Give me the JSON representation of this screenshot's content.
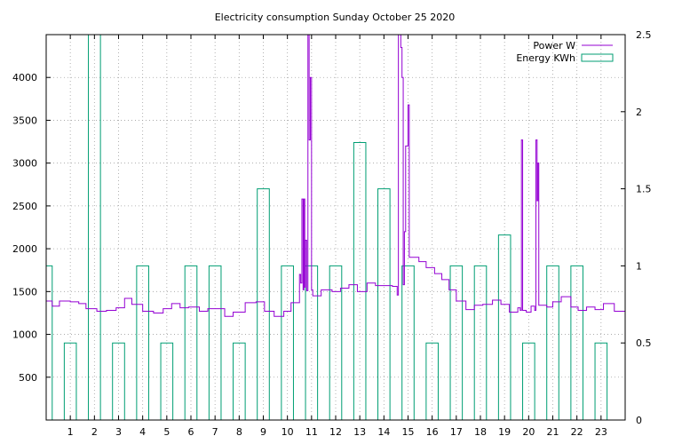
{
  "chart_data": {
    "type": "line",
    "title": "Electricity consumption Sunday October 25 2020",
    "xlabel": "",
    "ylabel": "",
    "x_range": [
      0,
      24
    ],
    "xticks": [
      "1",
      "2",
      "3",
      "4",
      "5",
      "6",
      "7",
      "8",
      "9",
      "10",
      "11",
      "12",
      "13",
      "14",
      "15",
      "16",
      "17",
      "18",
      "19",
      "20",
      "21",
      "22",
      "23"
    ],
    "y_left_range": [
      0,
      4500
    ],
    "y_left_ticks": [
      "500",
      "1000",
      "1500",
      "2000",
      "2500",
      "3000",
      "3500",
      "4000"
    ],
    "y_right_range": [
      0,
      2.5
    ],
    "y_right_ticks": [
      "0",
      "0.5",
      "1",
      "1.5",
      "2",
      "2.5"
    ],
    "grid": true,
    "legend_position": "top-right",
    "colors": {
      "power": "#9400d3",
      "energy": "#009e73"
    },
    "series": [
      {
        "name": "Power W",
        "axis": "left",
        "style": "steps",
        "points": [
          [
            0.0,
            1390
          ],
          [
            0.25,
            1330
          ],
          [
            0.55,
            1390
          ],
          [
            1.0,
            1380
          ],
          [
            1.35,
            1360
          ],
          [
            1.65,
            1300
          ],
          [
            2.1,
            1270
          ],
          [
            2.5,
            1280
          ],
          [
            2.9,
            1310
          ],
          [
            3.25,
            1420
          ],
          [
            3.55,
            1350
          ],
          [
            4.0,
            1270
          ],
          [
            4.45,
            1250
          ],
          [
            4.85,
            1300
          ],
          [
            5.2,
            1360
          ],
          [
            5.55,
            1310
          ],
          [
            5.9,
            1320
          ],
          [
            6.35,
            1270
          ],
          [
            6.7,
            1300
          ],
          [
            7.4,
            1210
          ],
          [
            7.75,
            1260
          ],
          [
            8.25,
            1370
          ],
          [
            8.7,
            1380
          ],
          [
            9.05,
            1270
          ],
          [
            9.45,
            1210
          ],
          [
            9.85,
            1270
          ],
          [
            10.15,
            1370
          ],
          [
            10.5,
            1700
          ],
          [
            10.55,
            1600
          ],
          [
            10.6,
            2580
          ],
          [
            10.65,
            1520
          ],
          [
            10.68,
            2580
          ],
          [
            10.72,
            1550
          ],
          [
            10.75,
            2100
          ],
          [
            10.8,
            1510
          ],
          [
            10.85,
            4500
          ],
          [
            10.9,
            3270
          ],
          [
            10.95,
            4000
          ],
          [
            11.0,
            1520
          ],
          [
            11.05,
            1450
          ],
          [
            11.4,
            1520
          ],
          [
            11.85,
            1500
          ],
          [
            12.2,
            1540
          ],
          [
            12.55,
            1580
          ],
          [
            12.9,
            1500
          ],
          [
            13.3,
            1600
          ],
          [
            13.65,
            1570
          ],
          [
            14.0,
            1570
          ],
          [
            14.35,
            1560
          ],
          [
            14.55,
            1460
          ],
          [
            14.6,
            4500
          ],
          [
            14.7,
            4350
          ],
          [
            14.75,
            4000
          ],
          [
            14.8,
            1580
          ],
          [
            14.85,
            2200
          ],
          [
            14.9,
            3200
          ],
          [
            15.0,
            3680
          ],
          [
            15.05,
            1900
          ],
          [
            15.45,
            1850
          ],
          [
            15.75,
            1780
          ],
          [
            16.1,
            1710
          ],
          [
            16.4,
            1640
          ],
          [
            16.7,
            1520
          ],
          [
            17.0,
            1390
          ],
          [
            17.4,
            1290
          ],
          [
            17.75,
            1340
          ],
          [
            18.1,
            1350
          ],
          [
            18.5,
            1400
          ],
          [
            18.85,
            1350
          ],
          [
            19.2,
            1260
          ],
          [
            19.55,
            1310
          ],
          [
            19.65,
            1280
          ],
          [
            19.7,
            3270
          ],
          [
            19.75,
            1280
          ],
          [
            19.9,
            1260
          ],
          [
            20.1,
            1330
          ],
          [
            20.25,
            1280
          ],
          [
            20.3,
            3270
          ],
          [
            20.35,
            2560
          ],
          [
            20.38,
            3000
          ],
          [
            20.42,
            1340
          ],
          [
            20.75,
            1320
          ],
          [
            21.0,
            1380
          ],
          [
            21.35,
            1440
          ],
          [
            21.75,
            1320
          ],
          [
            22.05,
            1280
          ],
          [
            22.4,
            1320
          ],
          [
            22.75,
            1290
          ],
          [
            23.1,
            1360
          ],
          [
            23.55,
            1270
          ],
          [
            24.0,
            1270
          ]
        ]
      },
      {
        "name": "Energy KWh",
        "axis": "right",
        "style": "boxes",
        "bar_width": 0.5,
        "x": [
          0,
          1,
          2,
          3,
          4,
          5,
          6,
          7,
          8,
          9,
          10,
          11,
          12,
          13,
          14,
          15,
          16,
          17,
          18,
          19,
          20,
          21,
          22,
          23
        ],
        "values": [
          1.0,
          0.5,
          2.5,
          0.5,
          1.0,
          0.5,
          1.0,
          1.0,
          0.5,
          1.5,
          1.0,
          1.0,
          1.0,
          1.8,
          1.5,
          1.0,
          0.5,
          1.0,
          1.0,
          1.2,
          0.5,
          1.0,
          1.0,
          0.5
        ]
      }
    ]
  }
}
